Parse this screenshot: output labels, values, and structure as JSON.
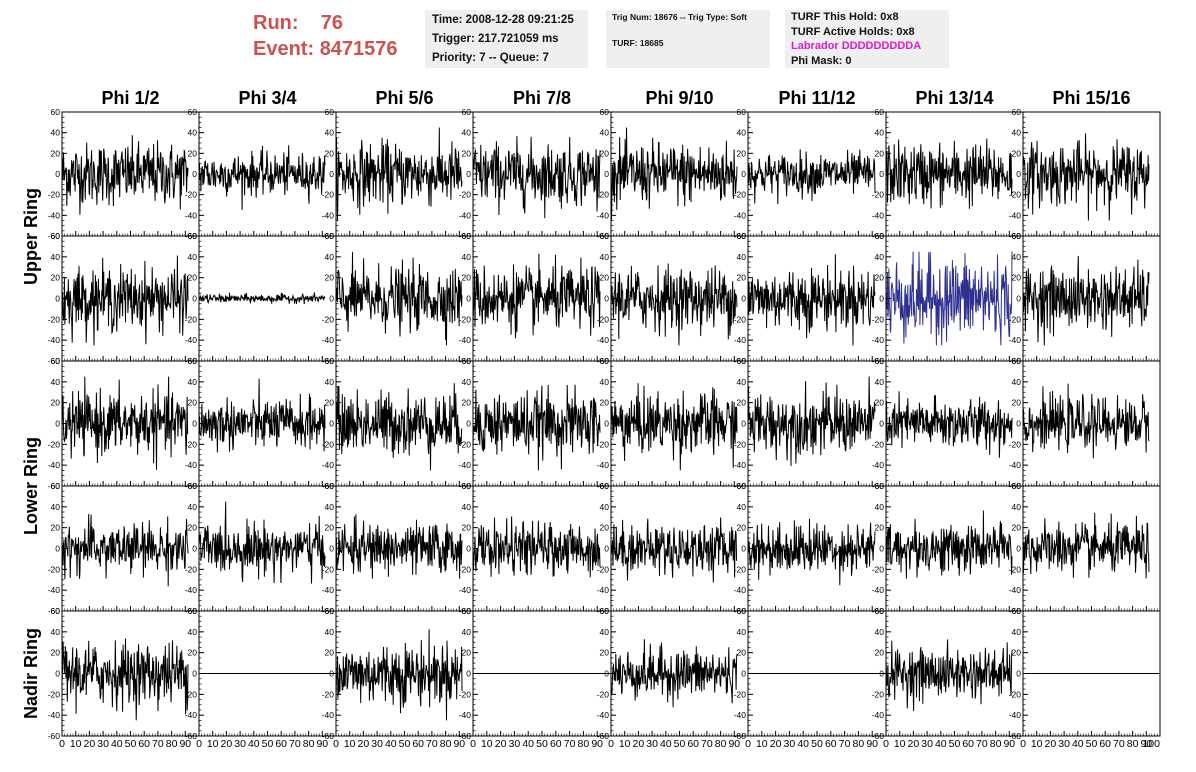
{
  "header": {
    "run_label": "Run:",
    "run_value": "76",
    "event_label": "Event:",
    "event_value": "8471576"
  },
  "info_boxes": {
    "box1": [
      "Time: 2008-12-28 09:21:25",
      "Trigger: 217.721059 ms",
      "Priority: 7 -- Queue: 7"
    ],
    "box2": [
      "Trig Num: 18676 -- Trig Type: Soft",
      "TURF: 18685"
    ],
    "box3": [
      "TURF This Hold: 0x8",
      "TURF Active Holds: 0x8",
      "Labrador DDDDDDDDDA",
      "Phi Mask: 0"
    ]
  },
  "colors": {
    "header_red": "#d05050",
    "labrador_magenta": "#e01ad0",
    "highlight_trace": "#2e3192",
    "box_bg": "#efefef"
  },
  "chart_data": {
    "type": "line",
    "columns": [
      "Phi 1/2",
      "Phi 3/4",
      "Phi 5/6",
      "Phi 7/8",
      "Phi 9/10",
      "Phi 11/12",
      "Phi 13/14",
      "Phi 15/16"
    ],
    "rows": [
      "Upper Ring",
      "Upper Ring",
      "Lower Ring",
      "Lower Ring",
      "Nadir Ring"
    ],
    "row_group_labels": [
      "Upper Ring",
      "Lower Ring",
      "Nadir Ring"
    ],
    "ylim": [
      -60,
      60
    ],
    "xlim": [
      0,
      100
    ],
    "ytick_labels": [
      "60",
      "40",
      "20",
      "0",
      "-20",
      "-40",
      "-60"
    ],
    "xtick_labels": [
      "0",
      "10",
      "20",
      "30",
      "40",
      "50",
      "60",
      "70",
      "80",
      "90",
      "100"
    ],
    "highlight_panel": {
      "row": 1,
      "col": 6,
      "color": "#2e3192"
    },
    "panel_amplitudes": [
      [
        15,
        10,
        15,
        15,
        15,
        10,
        15,
        15
      ],
      [
        15,
        2,
        15,
        15,
        15,
        15,
        20,
        15
      ],
      [
        15,
        12,
        15,
        15,
        15,
        15,
        12,
        12
      ],
      [
        12,
        12,
        12,
        12,
        12,
        12,
        12,
        12
      ],
      [
        15,
        0,
        15,
        0,
        12,
        0,
        12,
        0
      ]
    ]
  }
}
